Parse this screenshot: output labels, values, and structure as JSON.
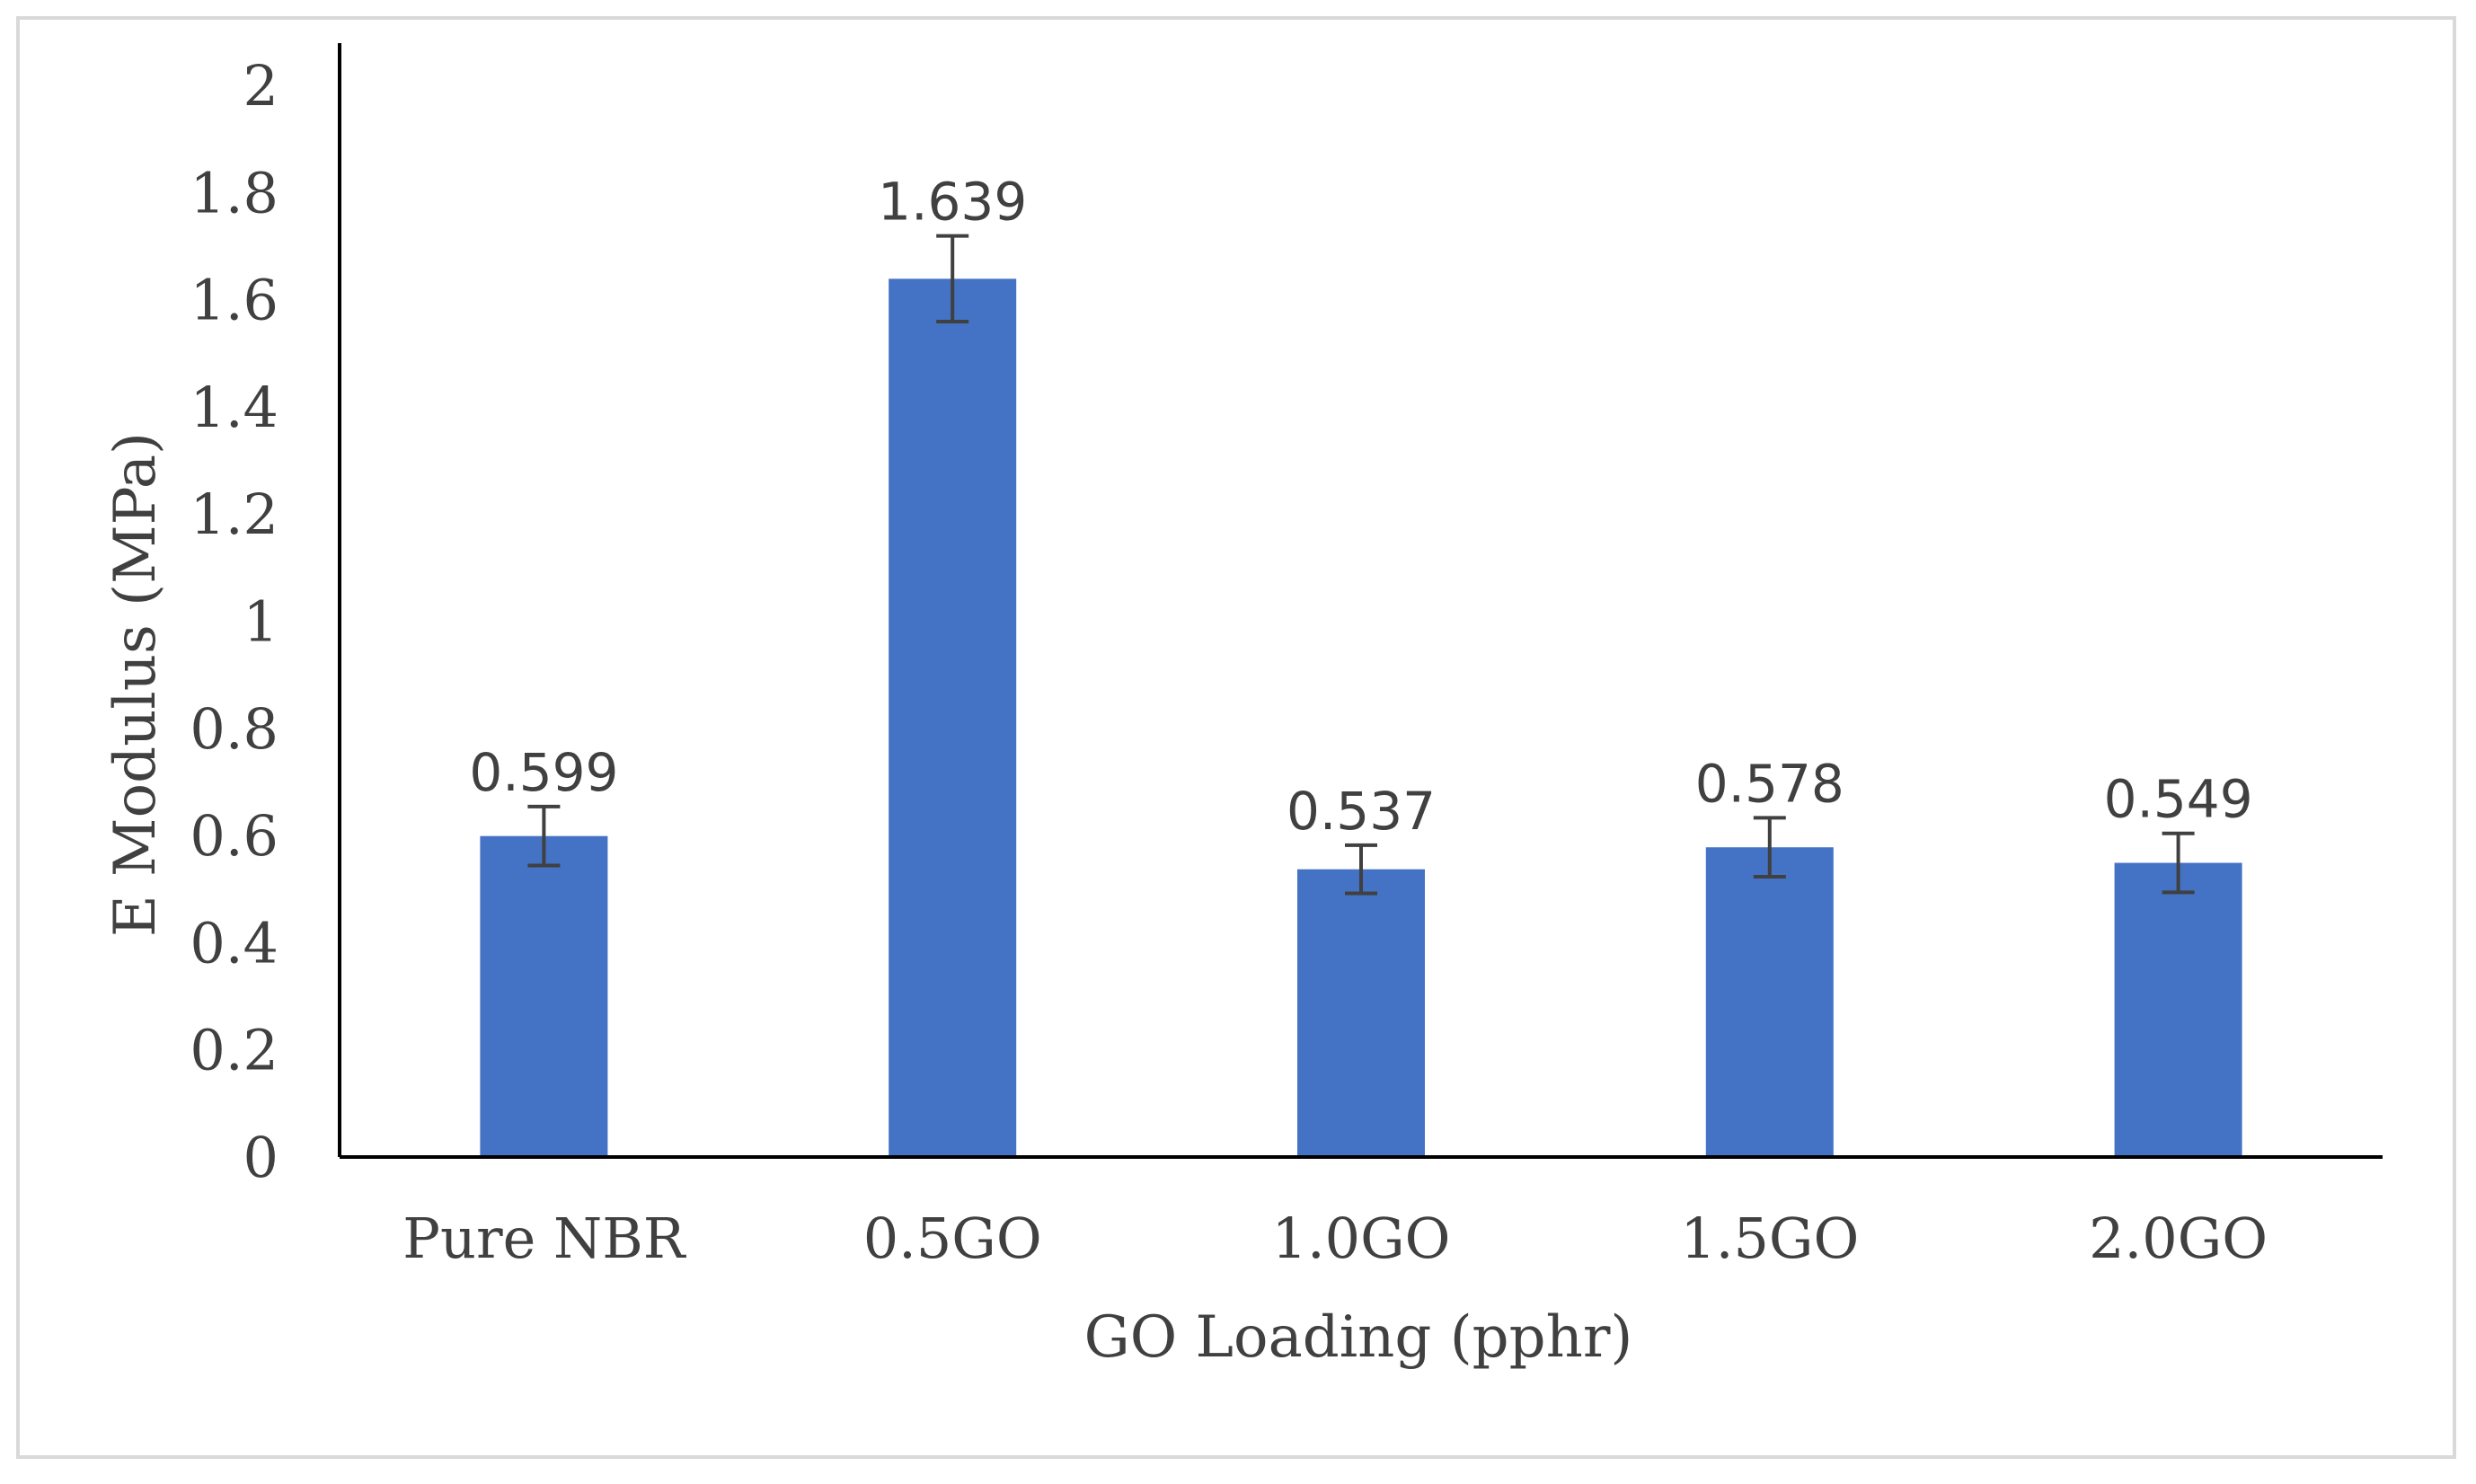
{
  "chart_data": {
    "type": "bar",
    "categories": [
      "Pure NBR",
      "0.5GO",
      "1.0GO",
      "1.5GO",
      "2.0GO"
    ],
    "values": [
      0.599,
      1.639,
      0.537,
      0.578,
      0.549
    ],
    "data_labels": [
      "0.599",
      "1.639",
      "0.537",
      "0.578",
      "0.549"
    ],
    "error": [
      0.055,
      0.08,
      0.045,
      0.055,
      0.055
    ],
    "xlabel": "GO  Loading (pphr)",
    "ylabel": "E Modulus (MPa)",
    "ylim": [
      0,
      2
    ],
    "yticks": [
      "0",
      "0.2",
      "0.4",
      "0.6",
      "0.8",
      "1",
      "1.2",
      "1.4",
      "1.6",
      "1.8",
      "2"
    ],
    "grid": false,
    "legend": "none",
    "bar_color": "#4472C4",
    "errorbar_color": "#404040"
  }
}
